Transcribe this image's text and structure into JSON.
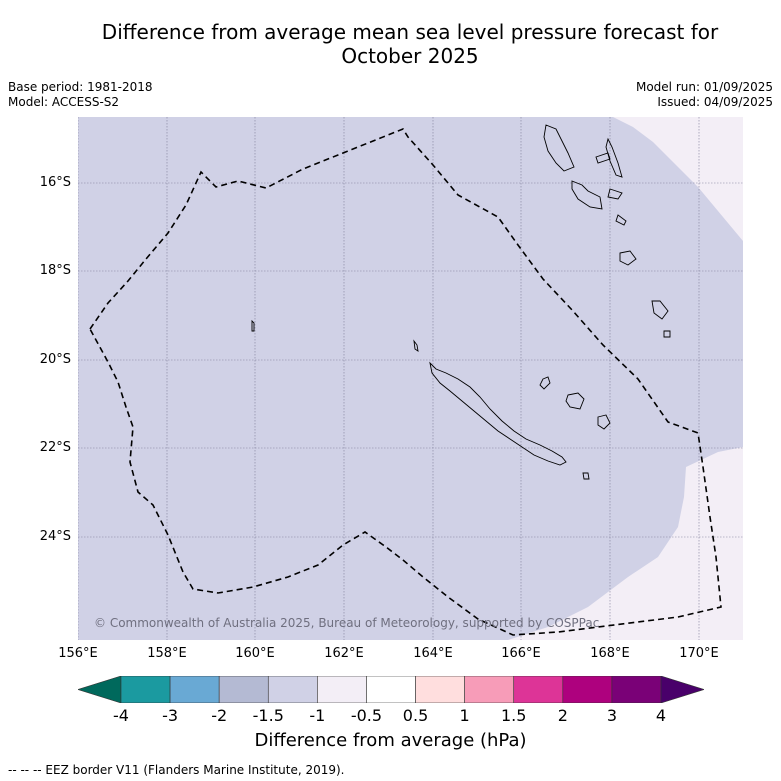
{
  "title": "Difference from average mean sea level pressure forecast for\nOctober 2025",
  "title_line1": "Difference from average mean sea level pressure forecast for",
  "title_line2": "October 2025",
  "base_period": "Base period: 1981-2018",
  "model": "Model: ACCESS-S2",
  "model_run": "Model run: 01/09/2025",
  "issued": "Issued: 04/09/2025",
  "copyright": "© Commonwealth of Australia 2025, Bureau of Meteorology, supported by COSPPac",
  "lat_labels": [
    "16°S",
    "18°S",
    "20°S",
    "22°S",
    "24°S"
  ],
  "lon_labels": [
    "156°E",
    "158°E",
    "160°E",
    "162°E",
    "164°E",
    "166°E",
    "168°E",
    "170°E"
  ],
  "colorbar": {
    "ticks": [
      "-4",
      "-3",
      "-2",
      "-1.5",
      "-1",
      "-0.5",
      "0.5",
      "1",
      "1.5",
      "2",
      "3",
      "4"
    ],
    "colors": [
      "#00695c",
      "#1b9aa0",
      "#69a9d4",
      "#b4bad3",
      "#d0d1e6",
      "#f3eef6",
      "#ffffff",
      "#ffdede",
      "#f79cb8",
      "#dd3497",
      "#ae017e",
      "#7a0177",
      "#49006a"
    ],
    "label": "Difference from average (hPa)"
  },
  "footnote": "--  --  -- EEZ border V11 (Flanders Marine Institute, 2019)."
}
